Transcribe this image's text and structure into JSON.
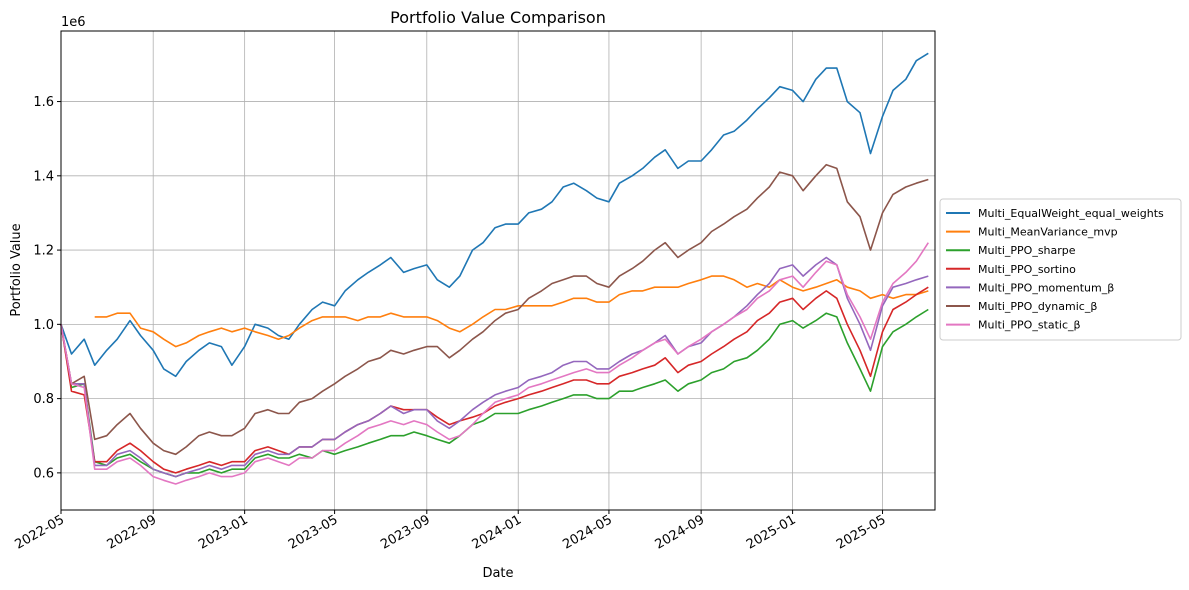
{
  "chart_data": {
    "type": "line",
    "title": "Portfolio Value Comparison",
    "xlabel": "Date",
    "ylabel": "Portfolio Value",
    "y_offset_text": "1e6",
    "xlim": [
      "2022-05-01",
      "2025-07-10"
    ],
    "ylim": [
      0.5,
      1.79
    ],
    "x_ticks": [
      "2022-05",
      "2022-09",
      "2023-01",
      "2023-05",
      "2023-09",
      "2024-01",
      "2024-05",
      "2024-09",
      "2025-01",
      "2025-05"
    ],
    "y_ticks": [
      "0.6",
      "0.8",
      "1.0",
      "1.2",
      "1.4",
      "1.6"
    ],
    "y_tick_values": [
      0.6,
      0.8,
      1.0,
      1.2,
      1.4,
      1.6
    ],
    "grid": true,
    "legend_position": "right-outside",
    "x": [
      "2022-05-01",
      "2022-05-15",
      "2022-06-01",
      "2022-06-15",
      "2022-07-01",
      "2022-07-15",
      "2022-08-01",
      "2022-08-15",
      "2022-09-01",
      "2022-09-15",
      "2022-10-01",
      "2022-10-15",
      "2022-11-01",
      "2022-11-15",
      "2022-12-01",
      "2022-12-15",
      "2023-01-01",
      "2023-01-15",
      "2023-02-01",
      "2023-02-15",
      "2023-03-01",
      "2023-03-15",
      "2023-04-01",
      "2023-04-15",
      "2023-05-01",
      "2023-05-15",
      "2023-06-01",
      "2023-06-15",
      "2023-07-01",
      "2023-07-15",
      "2023-08-01",
      "2023-08-15",
      "2023-09-01",
      "2023-09-15",
      "2023-10-01",
      "2023-10-15",
      "2023-11-01",
      "2023-11-15",
      "2023-12-01",
      "2023-12-15",
      "2024-01-01",
      "2024-01-15",
      "2024-02-01",
      "2024-02-15",
      "2024-03-01",
      "2024-03-15",
      "2024-04-01",
      "2024-04-15",
      "2024-05-01",
      "2024-05-15",
      "2024-06-01",
      "2024-06-15",
      "2024-07-01",
      "2024-07-15",
      "2024-08-01",
      "2024-08-15",
      "2024-09-01",
      "2024-09-15",
      "2024-10-01",
      "2024-10-15",
      "2024-11-01",
      "2024-11-15",
      "2024-12-01",
      "2024-12-15",
      "2025-01-01",
      "2025-01-15",
      "2025-02-01",
      "2025-02-15",
      "2025-03-01",
      "2025-03-15",
      "2025-04-01",
      "2025-04-15",
      "2025-05-01",
      "2025-05-15",
      "2025-06-01",
      "2025-06-15",
      "2025-07-01"
    ],
    "series": [
      {
        "name": "Multi_EqualWeight_equal_weights",
        "color": "#1f77b4",
        "values": [
          1.0,
          0.92,
          0.96,
          0.89,
          0.93,
          0.96,
          1.01,
          0.97,
          0.93,
          0.88,
          0.86,
          0.9,
          0.93,
          0.95,
          0.94,
          0.89,
          0.94,
          1.0,
          0.99,
          0.97,
          0.96,
          1.0,
          1.04,
          1.06,
          1.05,
          1.09,
          1.12,
          1.14,
          1.16,
          1.18,
          1.14,
          1.15,
          1.16,
          1.12,
          1.1,
          1.13,
          1.2,
          1.22,
          1.26,
          1.27,
          1.27,
          1.3,
          1.31,
          1.33,
          1.37,
          1.38,
          1.36,
          1.34,
          1.33,
          1.38,
          1.4,
          1.42,
          1.45,
          1.47,
          1.42,
          1.44,
          1.44,
          1.47,
          1.51,
          1.52,
          1.55,
          1.58,
          1.61,
          1.64,
          1.63,
          1.6,
          1.66,
          1.69,
          1.69,
          1.6,
          1.57,
          1.46,
          1.56,
          1.63,
          1.66,
          1.71,
          1.73
        ]
      },
      {
        "name": "Multi_MeanVariance_mvp",
        "color": "#ff7f0e",
        "values": [
          1.0,
          null,
          null,
          1.02,
          1.02,
          1.03,
          1.03,
          0.99,
          0.98,
          0.96,
          0.94,
          0.95,
          0.97,
          0.98,
          0.99,
          0.98,
          0.99,
          0.98,
          0.97,
          0.96,
          0.97,
          0.99,
          1.01,
          1.02,
          1.02,
          1.02,
          1.01,
          1.02,
          1.02,
          1.03,
          1.02,
          1.02,
          1.02,
          1.01,
          0.99,
          0.98,
          1.0,
          1.02,
          1.04,
          1.04,
          1.05,
          1.05,
          1.05,
          1.05,
          1.06,
          1.07,
          1.07,
          1.06,
          1.06,
          1.08,
          1.09,
          1.09,
          1.1,
          1.1,
          1.1,
          1.11,
          1.12,
          1.13,
          1.13,
          1.12,
          1.1,
          1.11,
          1.1,
          1.12,
          1.1,
          1.09,
          1.1,
          1.11,
          1.12,
          1.1,
          1.09,
          1.07,
          1.08,
          1.07,
          1.08,
          1.08,
          1.09
        ]
      },
      {
        "name": "Multi_PPO_sharpe",
        "color": "#2ca02c",
        "values": [
          1.0,
          0.83,
          0.84,
          0.63,
          0.62,
          0.64,
          0.65,
          0.63,
          0.61,
          0.6,
          0.59,
          0.6,
          0.6,
          0.61,
          0.6,
          0.61,
          0.61,
          0.64,
          0.65,
          0.64,
          0.64,
          0.65,
          0.64,
          0.66,
          0.65,
          0.66,
          0.67,
          0.68,
          0.69,
          0.7,
          0.7,
          0.71,
          0.7,
          0.69,
          0.68,
          0.7,
          0.73,
          0.74,
          0.76,
          0.76,
          0.76,
          0.77,
          0.78,
          0.79,
          0.8,
          0.81,
          0.81,
          0.8,
          0.8,
          0.82,
          0.82,
          0.83,
          0.84,
          0.85,
          0.82,
          0.84,
          0.85,
          0.87,
          0.88,
          0.9,
          0.91,
          0.93,
          0.96,
          1.0,
          1.01,
          0.99,
          1.01,
          1.03,
          1.02,
          0.95,
          0.88,
          0.82,
          0.94,
          0.98,
          1.0,
          1.02,
          1.04
        ]
      },
      {
        "name": "Multi_PPO_sortino",
        "color": "#d62728",
        "values": [
          1.0,
          0.82,
          0.81,
          0.63,
          0.63,
          0.66,
          0.68,
          0.66,
          0.63,
          0.61,
          0.6,
          0.61,
          0.62,
          0.63,
          0.62,
          0.63,
          0.63,
          0.66,
          0.67,
          0.66,
          0.65,
          0.67,
          0.67,
          0.69,
          0.69,
          0.71,
          0.73,
          0.74,
          0.76,
          0.78,
          0.77,
          0.77,
          0.77,
          0.75,
          0.73,
          0.74,
          0.75,
          0.76,
          0.78,
          0.79,
          0.8,
          0.81,
          0.82,
          0.83,
          0.84,
          0.85,
          0.85,
          0.84,
          0.84,
          0.86,
          0.87,
          0.88,
          0.89,
          0.91,
          0.87,
          0.89,
          0.9,
          0.92,
          0.94,
          0.96,
          0.98,
          1.01,
          1.03,
          1.06,
          1.07,
          1.04,
          1.07,
          1.09,
          1.07,
          1.0,
          0.93,
          0.86,
          0.98,
          1.04,
          1.06,
          1.08,
          1.1
        ]
      },
      {
        "name": "Multi_PPO_momentum_β",
        "color": "#9467bd",
        "values": [
          1.0,
          0.84,
          0.84,
          0.62,
          0.62,
          0.65,
          0.66,
          0.64,
          0.61,
          0.6,
          0.59,
          0.6,
          0.61,
          0.62,
          0.61,
          0.62,
          0.62,
          0.65,
          0.66,
          0.65,
          0.65,
          0.67,
          0.67,
          0.69,
          0.69,
          0.71,
          0.73,
          0.74,
          0.76,
          0.78,
          0.76,
          0.77,
          0.77,
          0.74,
          0.72,
          0.74,
          0.77,
          0.79,
          0.81,
          0.82,
          0.83,
          0.85,
          0.86,
          0.87,
          0.89,
          0.9,
          0.9,
          0.88,
          0.88,
          0.9,
          0.92,
          0.93,
          0.95,
          0.97,
          0.92,
          0.94,
          0.95,
          0.98,
          1.0,
          1.02,
          1.05,
          1.08,
          1.11,
          1.15,
          1.16,
          1.13,
          1.16,
          1.18,
          1.16,
          1.07,
          1.0,
          0.93,
          1.05,
          1.1,
          1.11,
          1.12,
          1.13
        ]
      },
      {
        "name": "Multi_PPO_dynamic_β",
        "color": "#8c564b",
        "values": [
          1.0,
          0.84,
          0.86,
          0.69,
          0.7,
          0.73,
          0.76,
          0.72,
          0.68,
          0.66,
          0.65,
          0.67,
          0.7,
          0.71,
          0.7,
          0.7,
          0.72,
          0.76,
          0.77,
          0.76,
          0.76,
          0.79,
          0.8,
          0.82,
          0.84,
          0.86,
          0.88,
          0.9,
          0.91,
          0.93,
          0.92,
          0.93,
          0.94,
          0.94,
          0.91,
          0.93,
          0.96,
          0.98,
          1.01,
          1.03,
          1.04,
          1.07,
          1.09,
          1.11,
          1.12,
          1.13,
          1.13,
          1.11,
          1.1,
          1.13,
          1.15,
          1.17,
          1.2,
          1.22,
          1.18,
          1.2,
          1.22,
          1.25,
          1.27,
          1.29,
          1.31,
          1.34,
          1.37,
          1.41,
          1.4,
          1.36,
          1.4,
          1.43,
          1.42,
          1.33,
          1.29,
          1.2,
          1.3,
          1.35,
          1.37,
          1.38,
          1.39
        ]
      },
      {
        "name": "Multi_PPO_static_β",
        "color": "#e377c2",
        "values": [
          1.0,
          0.84,
          0.83,
          0.61,
          0.61,
          0.63,
          0.64,
          0.62,
          0.59,
          0.58,
          0.57,
          0.58,
          0.59,
          0.6,
          0.59,
          0.59,
          0.6,
          0.63,
          0.64,
          0.63,
          0.62,
          0.64,
          0.64,
          0.66,
          0.66,
          0.68,
          0.7,
          0.72,
          0.73,
          0.74,
          0.73,
          0.74,
          0.73,
          0.71,
          0.69,
          0.7,
          0.73,
          0.76,
          0.79,
          0.8,
          0.81,
          0.83,
          0.84,
          0.85,
          0.86,
          0.87,
          0.88,
          0.87,
          0.87,
          0.89,
          0.91,
          0.93,
          0.95,
          0.96,
          0.92,
          0.94,
          0.96,
          0.98,
          1.0,
          1.02,
          1.04,
          1.07,
          1.09,
          1.12,
          1.13,
          1.1,
          1.14,
          1.17,
          1.16,
          1.08,
          1.02,
          0.96,
          1.06,
          1.11,
          1.14,
          1.17,
          1.22
        ]
      }
    ]
  }
}
